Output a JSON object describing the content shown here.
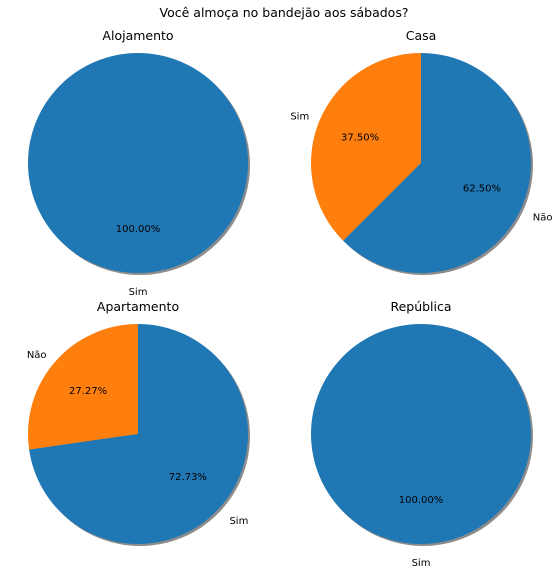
{
  "figure": {
    "suptitle": "Você almoça no bandejão aos sábados?"
  },
  "colors": {
    "blue": "#1f77b4",
    "orange": "#ff7f0e",
    "shadow": "#7f7f7f"
  },
  "chart_data": [
    {
      "type": "pie",
      "title": "Alojamento",
      "start_angle_deg": 90,
      "shadow": true,
      "slices": [
        {
          "label": "Sim",
          "value": 100.0,
          "pct_label": "100.00%",
          "color": "#1f77b4"
        }
      ]
    },
    {
      "type": "pie",
      "title": "Casa",
      "start_angle_deg": 90,
      "shadow": true,
      "slices": [
        {
          "label": "Sim",
          "value": 37.5,
          "pct_label": "37.50%",
          "color": "#ff7f0e"
        },
        {
          "label": "Não",
          "value": 62.5,
          "pct_label": "62.50%",
          "color": "#1f77b4"
        }
      ]
    },
    {
      "type": "pie",
      "title": "Apartamento",
      "start_angle_deg": 90,
      "shadow": true,
      "slices": [
        {
          "label": "Não",
          "value": 27.27,
          "pct_label": "27.27%",
          "color": "#ff7f0e"
        },
        {
          "label": "Sim",
          "value": 72.73,
          "pct_label": "72.73%",
          "color": "#1f77b4"
        }
      ]
    },
    {
      "type": "pie",
      "title": "República",
      "start_angle_deg": 90,
      "shadow": true,
      "slices": [
        {
          "label": "Sim",
          "value": 100.0,
          "pct_label": "100.00%",
          "color": "#1f77b4"
        }
      ]
    }
  ]
}
